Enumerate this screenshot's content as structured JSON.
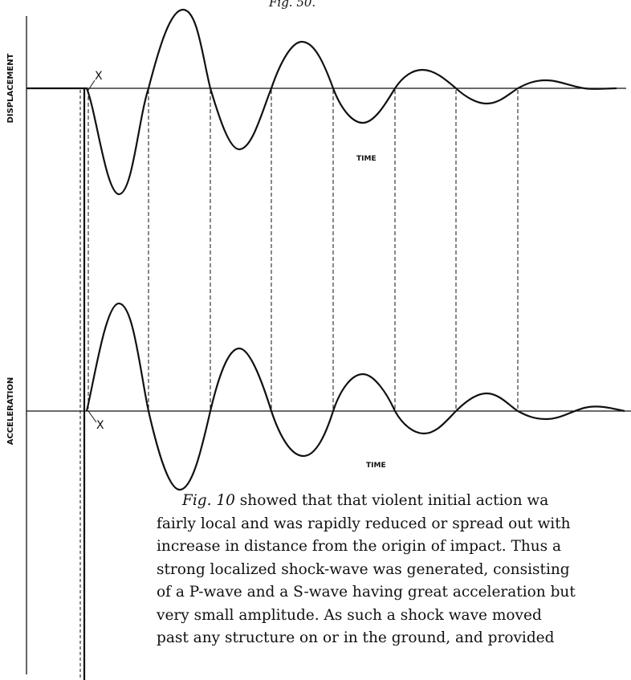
{
  "figure": {
    "caption": "Fig. 50.",
    "upper_axis_label": "DISPLACEMENT",
    "lower_axis_label": "ACCELERATION",
    "upper_time_label": "TIME",
    "lower_time_label": "TIME",
    "marker_upper": "X",
    "marker_lower": "X"
  },
  "text": {
    "lines": [
      {
        "em": "Fig. 10",
        "rest": " showed that that violent initial action wa"
      },
      {
        "em": "",
        "rest": "fairly local and was rapidly reduced or spread out with"
      },
      {
        "em": "",
        "rest": "increase in distance from the origin of impact.  Thus a"
      },
      {
        "em": "",
        "rest": "strong localized shock-wave was generated, consisting"
      },
      {
        "em": "",
        "rest": "of a P-wave and a S-wave having great acceleration but"
      },
      {
        "em": "",
        "rest": "very small amplitude.  As such a shock wave moved"
      },
      {
        "em": "",
        "rest": "past any structure on or in the ground, and provided"
      }
    ]
  }
}
